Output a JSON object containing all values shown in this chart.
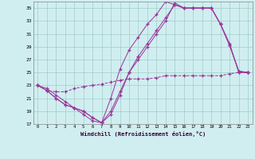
{
  "xlabel": "Windchill (Refroidissement éolien,°C)",
  "xlim": [
    -0.5,
    23.5
  ],
  "ylim": [
    17,
    36
  ],
  "yticks": [
    17,
    19,
    21,
    23,
    25,
    27,
    29,
    31,
    33,
    35
  ],
  "xticks": [
    0,
    1,
    2,
    3,
    4,
    5,
    6,
    7,
    8,
    9,
    10,
    11,
    12,
    13,
    14,
    15,
    16,
    17,
    18,
    19,
    20,
    21,
    22,
    23
  ],
  "background_color": "#d0eef0",
  "grid_color": "#a0ccc8",
  "line_color": "#993399",
  "line1_x": [
    0,
    1,
    2,
    3,
    4,
    5,
    6,
    7,
    8,
    9,
    10,
    11,
    12,
    13,
    14,
    15,
    16,
    17,
    18,
    19,
    20,
    21,
    22,
    23
  ],
  "line1_y": [
    23.0,
    22.2,
    22.0,
    22.0,
    22.5,
    22.8,
    23.0,
    23.2,
    23.5,
    23.8,
    24.0,
    24.0,
    24.0,
    24.2,
    24.5,
    24.5,
    24.5,
    24.5,
    24.5,
    24.5,
    24.5,
    24.8,
    25.0,
    25.0
  ],
  "line2_x": [
    0,
    1,
    2,
    3,
    4,
    5,
    6,
    7,
    8,
    9,
    10,
    11,
    12,
    13,
    14,
    15,
    16,
    17,
    18,
    19,
    20,
    21,
    22,
    23
  ],
  "line2_y": [
    23.0,
    22.2,
    21.0,
    20.0,
    19.5,
    19.0,
    18.0,
    17.2,
    18.5,
    21.5,
    25.0,
    27.5,
    29.5,
    31.5,
    33.5,
    35.5,
    35.0,
    35.0,
    35.0,
    35.0,
    32.5,
    29.2,
    25.2,
    25.0
  ],
  "line3_x": [
    0,
    1,
    2,
    3,
    4,
    5,
    6,
    7,
    8,
    9,
    10,
    11,
    12,
    13,
    14,
    15,
    16,
    17,
    18,
    19,
    20,
    21,
    22,
    23
  ],
  "line3_y": [
    23.0,
    22.5,
    21.5,
    20.5,
    19.5,
    18.5,
    17.5,
    17.2,
    21.0,
    25.5,
    28.5,
    30.5,
    32.5,
    34.0,
    36.0,
    35.5,
    35.0,
    35.0,
    35.0,
    35.0,
    32.5,
    29.5,
    25.0,
    25.0
  ],
  "line4_x": [
    0,
    1,
    2,
    3,
    4,
    5,
    6,
    7,
    8,
    9,
    10,
    11,
    12,
    13,
    14,
    15,
    16,
    17,
    18,
    19,
    20,
    21,
    22,
    23
  ],
  "line4_y": [
    23.0,
    22.2,
    21.0,
    20.0,
    19.5,
    19.0,
    18.0,
    17.2,
    19.0,
    22.0,
    25.0,
    27.0,
    29.0,
    31.0,
    33.0,
    35.8,
    35.0,
    35.0,
    35.0,
    35.0,
    32.5,
    29.2,
    25.2,
    25.0
  ]
}
